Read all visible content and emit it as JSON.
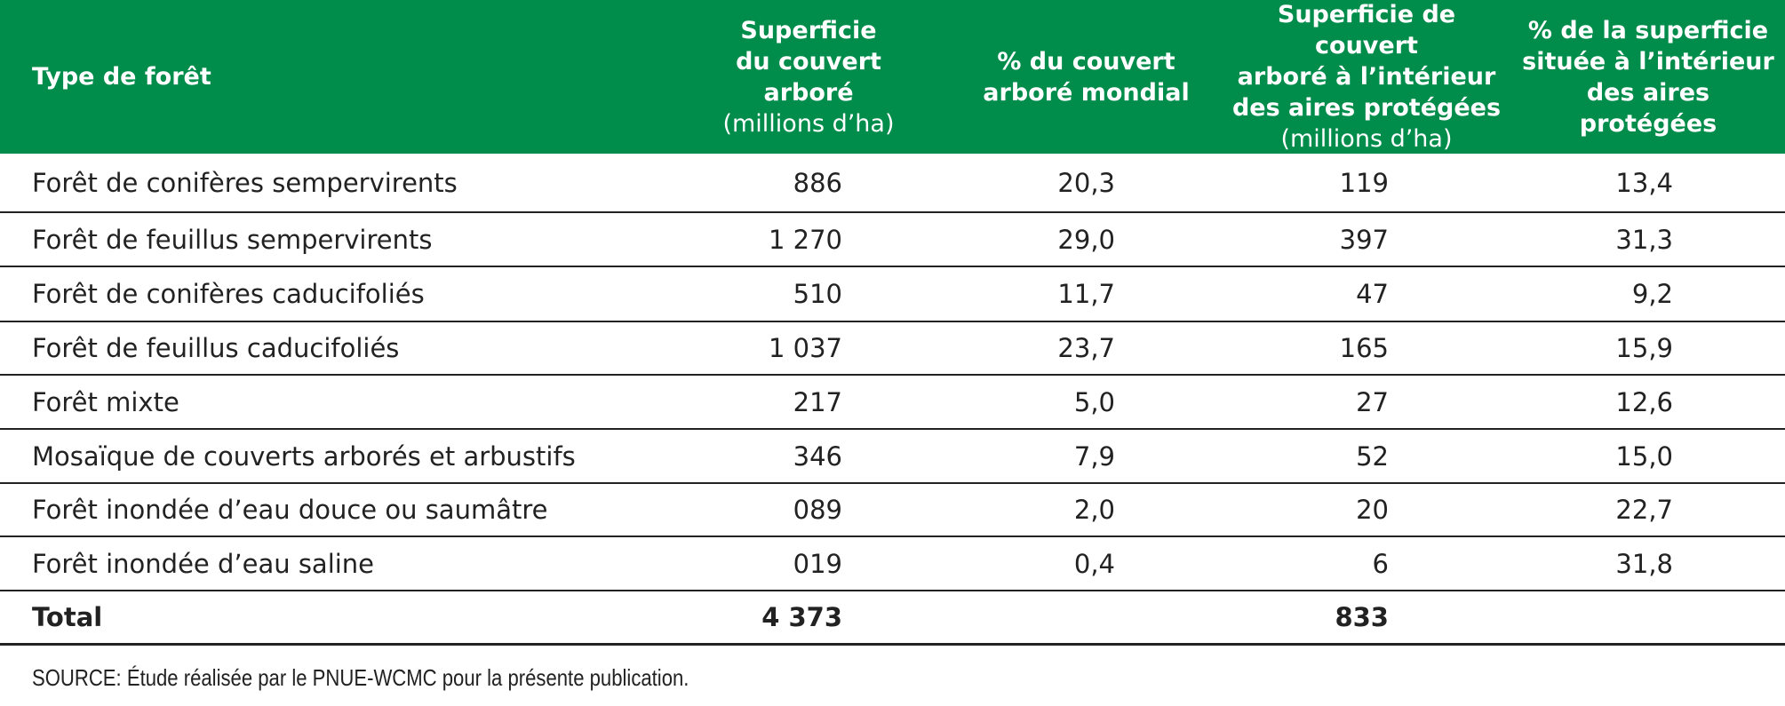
{
  "header": {
    "columns": [
      {
        "title": [
          "Type de forêt"
        ]
      },
      {
        "title": [
          "Superficie",
          "du couvert arboré"
        ],
        "unit": "(millions d’ha)"
      },
      {
        "title": [
          "% du couvert",
          "arboré mondial"
        ]
      },
      {
        "title": [
          "Superficie de couvert",
          "arboré à l’intérieur",
          "des aires protégées"
        ],
        "unit": "(millions d’ha)"
      },
      {
        "title": [
          "% de la superficie",
          "située à l’intérieur",
          "des aires protégées"
        ]
      }
    ]
  },
  "table": {
    "rows": [
      [
        "Forêt de conifères sempervirents",
        "886",
        "20,3",
        "119",
        "13,4"
      ],
      [
        "Forêt de feuillus sempervirents",
        "1 270",
        "29,0",
        "397",
        "31,3"
      ],
      [
        "Forêt de conifères caducifoliés",
        "510",
        "11,7",
        "47",
        "9,2"
      ],
      [
        "Forêt de feuillus caducifoliés",
        "1 037",
        "23,7",
        "165",
        "15,9"
      ],
      [
        "Forêt mixte",
        "217",
        "5,0",
        "27",
        "12,6"
      ],
      [
        "Mosaïque de couverts arborés et arbustifs",
        "346",
        "7,9",
        "52",
        "15,0"
      ],
      [
        "Forêt inondée d’eau douce ou saumâtre",
        "089",
        "2,0",
        "20",
        "22,7"
      ],
      [
        "Forêt inondée d’eau saline",
        "019",
        "0,4",
        "6",
        "31,8"
      ]
    ],
    "total": {
      "label": "Total",
      "area": "4 373",
      "protected_area": "833"
    }
  },
  "source": "SOURCE: Étude réalisée par le PNUE-WCMC pour la présente publication."
}
